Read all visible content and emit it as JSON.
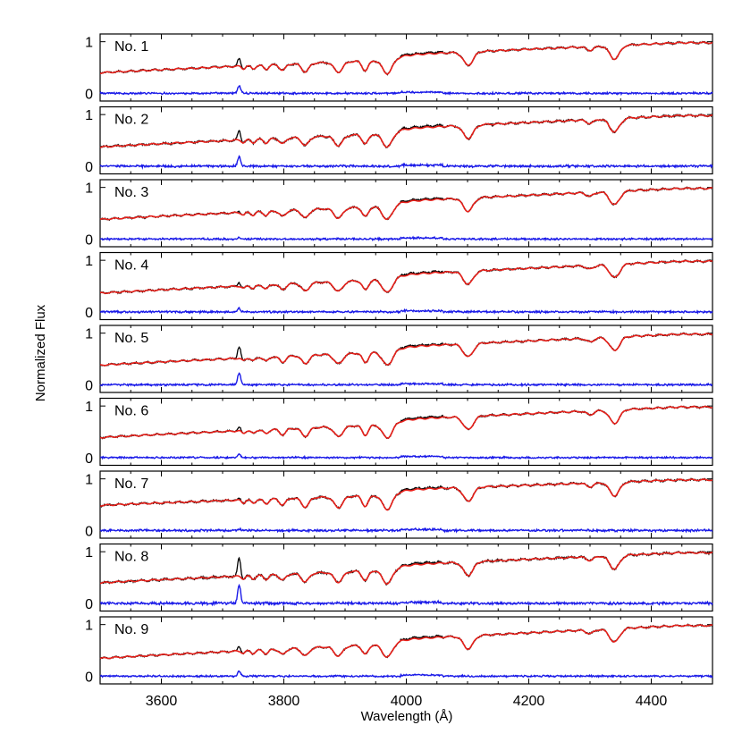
{
  "chart_data": {
    "type": "line",
    "xlabel": "Wavelength (Å)",
    "ylabel": "Normalized Flux",
    "xlim": [
      3500,
      4500
    ],
    "ylim": [
      -0.15,
      1.15
    ],
    "x_ticks": [
      3600,
      3800,
      4000,
      4200,
      4400
    ],
    "y_ticks": [
      0,
      1
    ],
    "colors": {
      "observed": "#000000",
      "model": "#e8201a",
      "residual": "#1a1ae8"
    },
    "panels": [
      {
        "label": "No. 1",
        "continuum_start": 0.45,
        "emission_3727": 0.14,
        "residual_noise": 0.012
      },
      {
        "label": "No. 2",
        "continuum_start": 0.42,
        "emission_3727": 0.18,
        "residual_noise": 0.014
      },
      {
        "label": "No. 3",
        "continuum_start": 0.43,
        "emission_3727": 0.03,
        "residual_noise": 0.012
      },
      {
        "label": "No. 4",
        "continuum_start": 0.41,
        "emission_3727": 0.07,
        "residual_noise": 0.013
      },
      {
        "label": "No. 5",
        "continuum_start": 0.43,
        "emission_3727": 0.23,
        "residual_noise": 0.012
      },
      {
        "label": "No. 6",
        "continuum_start": 0.44,
        "emission_3727": 0.07,
        "residual_noise": 0.011
      },
      {
        "label": "No. 7",
        "continuum_start": 0.55,
        "emission_3727": 0.03,
        "residual_noise": 0.014
      },
      {
        "label": "No. 8",
        "continuum_start": 0.45,
        "emission_3727": 0.35,
        "residual_noise": 0.016
      },
      {
        "label": "No. 9",
        "continuum_start": 0.39,
        "emission_3727": 0.09,
        "residual_noise": 0.011
      }
    ],
    "absorption_lines": [
      {
        "x": 3734,
        "depth": 0.1,
        "width": 3
      },
      {
        "x": 3750,
        "depth": 0.12,
        "width": 3.5
      },
      {
        "x": 3771,
        "depth": 0.15,
        "width": 4
      },
      {
        "x": 3798,
        "depth": 0.2,
        "width": 5
      },
      {
        "x": 3835,
        "depth": 0.28,
        "width": 6
      },
      {
        "x": 3889,
        "depth": 0.32,
        "width": 7
      },
      {
        "x": 3933,
        "depth": 0.3,
        "width": 5
      },
      {
        "x": 3969,
        "depth": 0.42,
        "width": 8
      },
      {
        "x": 4101,
        "depth": 0.32,
        "width": 8
      },
      {
        "x": 4300,
        "depth": 0.08,
        "width": 6
      },
      {
        "x": 4340,
        "depth": 0.28,
        "width": 8
      }
    ],
    "emission_lines": [
      {
        "x": 3727,
        "width": 2.5
      }
    ]
  }
}
